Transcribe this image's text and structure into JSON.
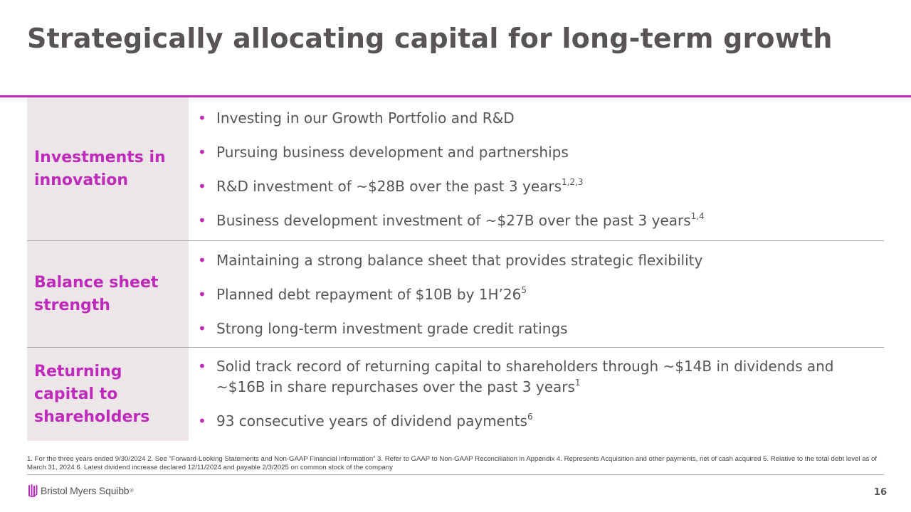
{
  "slide": {
    "title": "Strategically allocating capital for long-term growth",
    "page_number": "16",
    "accent_color": "#be2bbb",
    "label_bg_color": "#ede6e8"
  },
  "rows": [
    {
      "label": "Investments in innovation",
      "bullets": [
        {
          "text": "Investing in our Growth Portfolio and R&D",
          "sup": ""
        },
        {
          "text": "Pursuing business development and partnerships",
          "sup": ""
        },
        {
          "text": "R&D investment of ~$28B over the past 3 years",
          "sup": "1,2,3"
        },
        {
          "text": "Business development investment of ~$27B over the past 3 years",
          "sup": "1,4"
        }
      ]
    },
    {
      "label": "Balance sheet strength",
      "bullets": [
        {
          "text": "Maintaining a strong balance sheet that provides strategic flexibility",
          "sup": ""
        },
        {
          "text": "Planned debt repayment of $10B by 1H’26",
          "sup": "5"
        },
        {
          "text": "Strong long-term investment grade credit ratings",
          "sup": ""
        }
      ]
    },
    {
      "label": "Returning capital to shareholders",
      "bullets": [
        {
          "text": "Solid track record of returning capital to shareholders through ~$14B in dividends and ~$16B in share repurchases over the past 3 years",
          "sup": "1"
        },
        {
          "text": "93 consecutive years of dividend payments",
          "sup": "6"
        }
      ]
    }
  ],
  "footnote": "1. For the three years ended 9/30/2024 2. See “Forward-Looking Statements and Non-GAAP Financial Information” 3. Refer to GAAP to Non-GAAP Reconciliation in Appendix 4. Represents Acquisition and other payments, net of cash acquired 5. Relative to the total debt level as of March 31, 2024 6. Latest dividend increase declared 12/11/2024 and payable 2/3/2025 on common stock of the company",
  "logo": {
    "text": "Bristol Myers Squibb",
    "tm": "®",
    "icon": "bms-logo-icon"
  }
}
